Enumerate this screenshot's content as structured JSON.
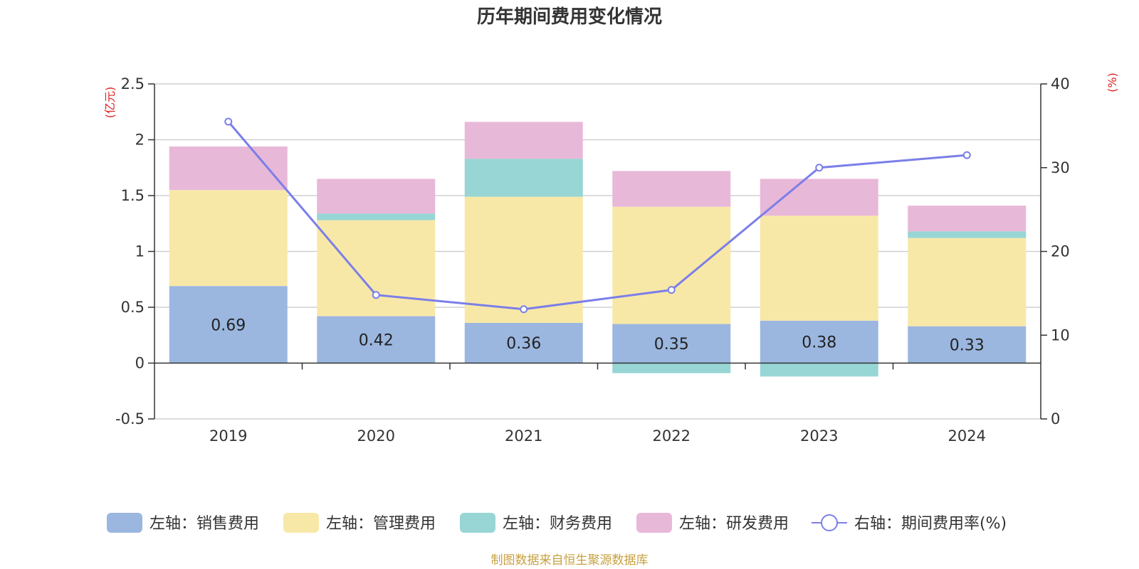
{
  "chart_data": {
    "type": "bar",
    "title": "历年期间费用变化情况",
    "categories": [
      "2019",
      "2020",
      "2021",
      "2022",
      "2023",
      "2024"
    ],
    "left_axis": {
      "unit": "(亿元)",
      "ticks": [
        "2.5",
        "2",
        "1.5",
        "1",
        "0.5",
        "0",
        "-0.5"
      ],
      "range": [
        -0.5,
        2.5
      ]
    },
    "right_axis": {
      "unit": "(%)",
      "ticks": [
        "40",
        "30",
        "20",
        "10",
        "0"
      ],
      "range": [
        0,
        40
      ]
    },
    "series": [
      {
        "name": "左轴：销售费用",
        "type": "bar",
        "axis": "left",
        "color": "#9bb7e0",
        "values": [
          0.69,
          0.42,
          0.36,
          0.35,
          0.38,
          0.33
        ],
        "labels": [
          "0.69",
          "0.42",
          "0.36",
          "0.35",
          "0.38",
          "0.33"
        ]
      },
      {
        "name": "左轴：管理费用",
        "type": "bar",
        "axis": "left",
        "color": "#f8e8a8",
        "values": [
          0.86,
          0.86,
          1.13,
          1.05,
          0.94,
          0.79
        ]
      },
      {
        "name": "左轴：财务费用",
        "type": "bar",
        "axis": "left",
        "color": "#98d5d5",
        "values": [
          0.0,
          0.06,
          0.34,
          -0.09,
          -0.12,
          0.06
        ]
      },
      {
        "name": "左轴：研发费用",
        "type": "bar",
        "axis": "left",
        "color": "#e8b8d8",
        "values": [
          0.39,
          0.31,
          0.33,
          0.32,
          0.33,
          0.23
        ]
      },
      {
        "name": "右轴：期间费用率(%)",
        "type": "line",
        "axis": "right",
        "color": "#7b7fe8",
        "values": [
          35.5,
          14.8,
          13.1,
          15.4,
          30.0,
          31.5
        ]
      }
    ],
    "grid": true,
    "legend_position": "bottom"
  },
  "source": "制图数据来自恒生聚源数据库",
  "colors": {
    "unit": "#e02020",
    "source": "#c8a040",
    "axis": "#333333",
    "grid": "#c8c8c8"
  }
}
